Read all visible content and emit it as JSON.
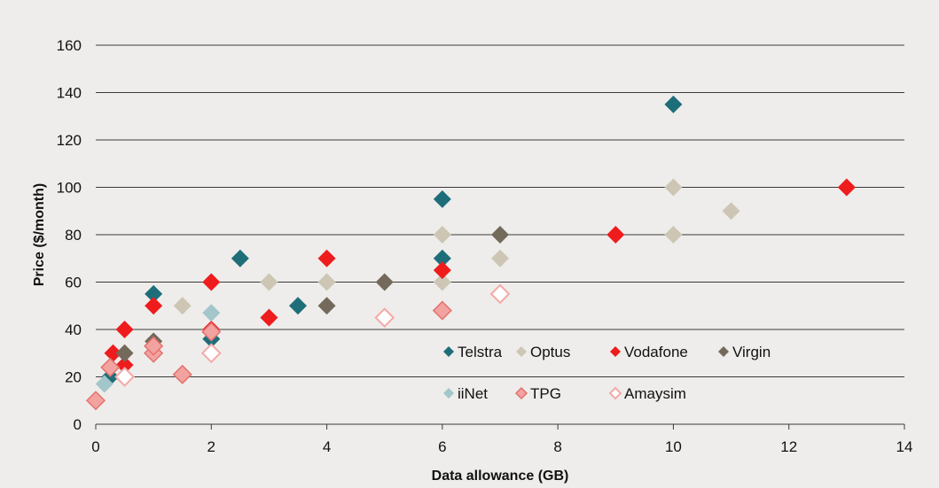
{
  "chart_data": {
    "type": "scatter",
    "title": "",
    "xlabel": "Data allowance (GB)",
    "ylabel": "Price ($/month)",
    "xlim": [
      0,
      14
    ],
    "ylim": [
      0,
      160
    ],
    "x_ticks": [
      "0",
      "2",
      "4",
      "6",
      "8",
      "10",
      "12",
      "14"
    ],
    "y_ticks": [
      "0",
      "20",
      "40",
      "60",
      "80",
      "100",
      "120",
      "140",
      "160"
    ],
    "grid": "horizontal",
    "legend_position": "inside-bottom-right",
    "series": [
      {
        "name": "Telstra",
        "color": "#1e6e7a",
        "marker": "diamond-filled",
        "points": [
          [
            0.25,
            20
          ],
          [
            1,
            55
          ],
          [
            2,
            36
          ],
          [
            2.5,
            70
          ],
          [
            3.5,
            50
          ],
          [
            6,
            95
          ],
          [
            6,
            70
          ],
          [
            10,
            135
          ]
        ]
      },
      {
        "name": "Optus",
        "color": "#cdc6b4",
        "marker": "diamond-filled",
        "points": [
          [
            1,
            35
          ],
          [
            1.5,
            50
          ],
          [
            3,
            60
          ],
          [
            4,
            60
          ],
          [
            6,
            80
          ],
          [
            6,
            60
          ],
          [
            7,
            70
          ],
          [
            10,
            100
          ],
          [
            10,
            80
          ],
          [
            11,
            90
          ]
        ]
      },
      {
        "name": "Vodafone",
        "color": "#ee1c1c",
        "marker": "diamond-filled",
        "points": [
          [
            0.3,
            30
          ],
          [
            0.5,
            40
          ],
          [
            0.5,
            25
          ],
          [
            1,
            50
          ],
          [
            2,
            60
          ],
          [
            2,
            40
          ],
          [
            3,
            45
          ],
          [
            4,
            70
          ],
          [
            6,
            65
          ],
          [
            9,
            80
          ],
          [
            13,
            100
          ]
        ]
      },
      {
        "name": "Virgin",
        "color": "#736a5c",
        "marker": "diamond-filled",
        "points": [
          [
            0.5,
            30
          ],
          [
            1,
            35
          ],
          [
            4,
            50
          ],
          [
            5,
            60
          ],
          [
            7,
            80
          ]
        ]
      },
      {
        "name": "iiNet",
        "color": "#a3c6cb",
        "marker": "diamond-filled",
        "points": [
          [
            0.15,
            17
          ],
          [
            2,
            47
          ]
        ]
      },
      {
        "name": "TPG",
        "color": "#f2a3a0",
        "stroke": "#e4716e",
        "marker": "diamond-outlined",
        "points": [
          [
            0,
            10
          ],
          [
            0.25,
            24
          ],
          [
            1,
            30
          ],
          [
            1,
            33
          ],
          [
            1.5,
            21
          ],
          [
            2,
            39
          ],
          [
            6,
            48
          ]
        ]
      },
      {
        "name": "Amaysim",
        "color": "#ffffff",
        "stroke": "#f4a9a8",
        "marker": "diamond-hollow",
        "points": [
          [
            0.5,
            20
          ],
          [
            2,
            30
          ],
          [
            5,
            45
          ],
          [
            7,
            55
          ]
        ]
      }
    ]
  }
}
